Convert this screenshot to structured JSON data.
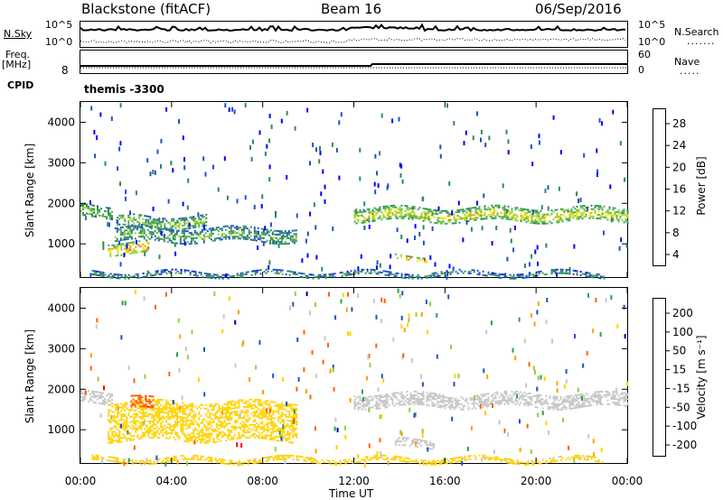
{
  "header": {
    "station": "Blackstone (fitACF)",
    "beam": "Beam 16",
    "date": "06/Sep/2016"
  },
  "top_panels": {
    "nsky_label": "N.Sky",
    "nsearch_label": "N.Search",
    "ylabels": [
      "10^5",
      "10^0"
    ],
    "freq_label": "Freq.",
    "freq_unit": "[MHz]",
    "freq_tick": "8",
    "nave_label": "Nave",
    "nave_ticks": [
      "60",
      "0"
    ],
    "cpid_label": "CPID",
    "cpid_text": "themis -3300"
  },
  "chart_data": [
    {
      "type": "heatmap",
      "title": "",
      "ylabel": "Slant Range [km]",
      "xlabel": "",
      "ylim": [
        180,
        4500
      ],
      "yticks": [
        "4000",
        "3000",
        "2000",
        "1000"
      ],
      "xticks": [
        "00:00",
        "04:00",
        "08:00",
        "12:00",
        "16:00",
        "20:00",
        "00:00"
      ],
      "colorbar": {
        "label": "Power [dB]",
        "ticks": [
          "28",
          "24",
          "20",
          "16",
          "12",
          "8",
          "4"
        ],
        "range": [
          0,
          30
        ],
        "colors": [
          "#0000ff",
          "#2050c8",
          "#2e8b57",
          "#4caf50",
          "#9ad32c",
          "#f0e020",
          "#ff9900",
          "#ff5000",
          "#ff0000"
        ]
      },
      "bands": [
        {
          "t0": 0.0,
          "t1": 1.4,
          "r0": 1650,
          "r1": 1950,
          "level": 14
        },
        {
          "t0": 1.2,
          "t1": 3.0,
          "r0": 750,
          "r1": 1050,
          "level": 22
        },
        {
          "t0": 1.5,
          "t1": 9.5,
          "r0": 1050,
          "r1": 1400,
          "level": 12
        },
        {
          "t0": 1.6,
          "t1": 5.5,
          "r0": 1400,
          "r1": 1700,
          "level": 14
        },
        {
          "t0": 12.0,
          "t1": 24.0,
          "r0": 1550,
          "r1": 1900,
          "level": 18
        },
        {
          "t0": 13.8,
          "t1": 15.2,
          "r0": 600,
          "r1": 720,
          "level": 24
        },
        {
          "t0": 0.5,
          "t1": 23.0,
          "r0": 200,
          "r1": 320,
          "level": 10
        }
      ]
    },
    {
      "type": "heatmap",
      "title": "",
      "ylabel": "Slant Range [km]",
      "xlabel": "Time UT",
      "ylim": [
        180,
        4500
      ],
      "yticks": [
        "4000",
        "3000",
        "2000",
        "1000"
      ],
      "xticks": [
        "00:00",
        "04:00",
        "08:00",
        "12:00",
        "16:00",
        "20:00",
        "00:00"
      ],
      "colorbar": {
        "label": "Velocity [m s⁻¹]",
        "ticks": [
          "200",
          "100",
          "50",
          "15",
          "-15",
          "-50",
          "-100",
          "-200"
        ],
        "range": [
          -250,
          250
        ],
        "colors": [
          "#ff0000",
          "#ff6000",
          "#ffa000",
          "#ffd200",
          "#c8c8c8",
          "#90d040",
          "#30a040",
          "#2050c8",
          "#0000a0"
        ]
      },
      "bands": [
        {
          "t0": 0.0,
          "t1": 1.4,
          "r0": 1650,
          "r1": 1950,
          "level": 0
        },
        {
          "t0": 1.2,
          "t1": 9.5,
          "r0": 750,
          "r1": 1700,
          "level": -60
        },
        {
          "t0": 2.2,
          "t1": 3.2,
          "r0": 1500,
          "r1": 1800,
          "level": -180
        },
        {
          "t0": 12.0,
          "t1": 24.0,
          "r0": 1550,
          "r1": 1900,
          "level": 0
        },
        {
          "t0": 13.8,
          "t1": 15.5,
          "r0": 560,
          "r1": 760,
          "level": 0
        },
        {
          "t0": 0.5,
          "t1": 23.0,
          "r0": 200,
          "r1": 320,
          "level": -40
        }
      ]
    }
  ]
}
